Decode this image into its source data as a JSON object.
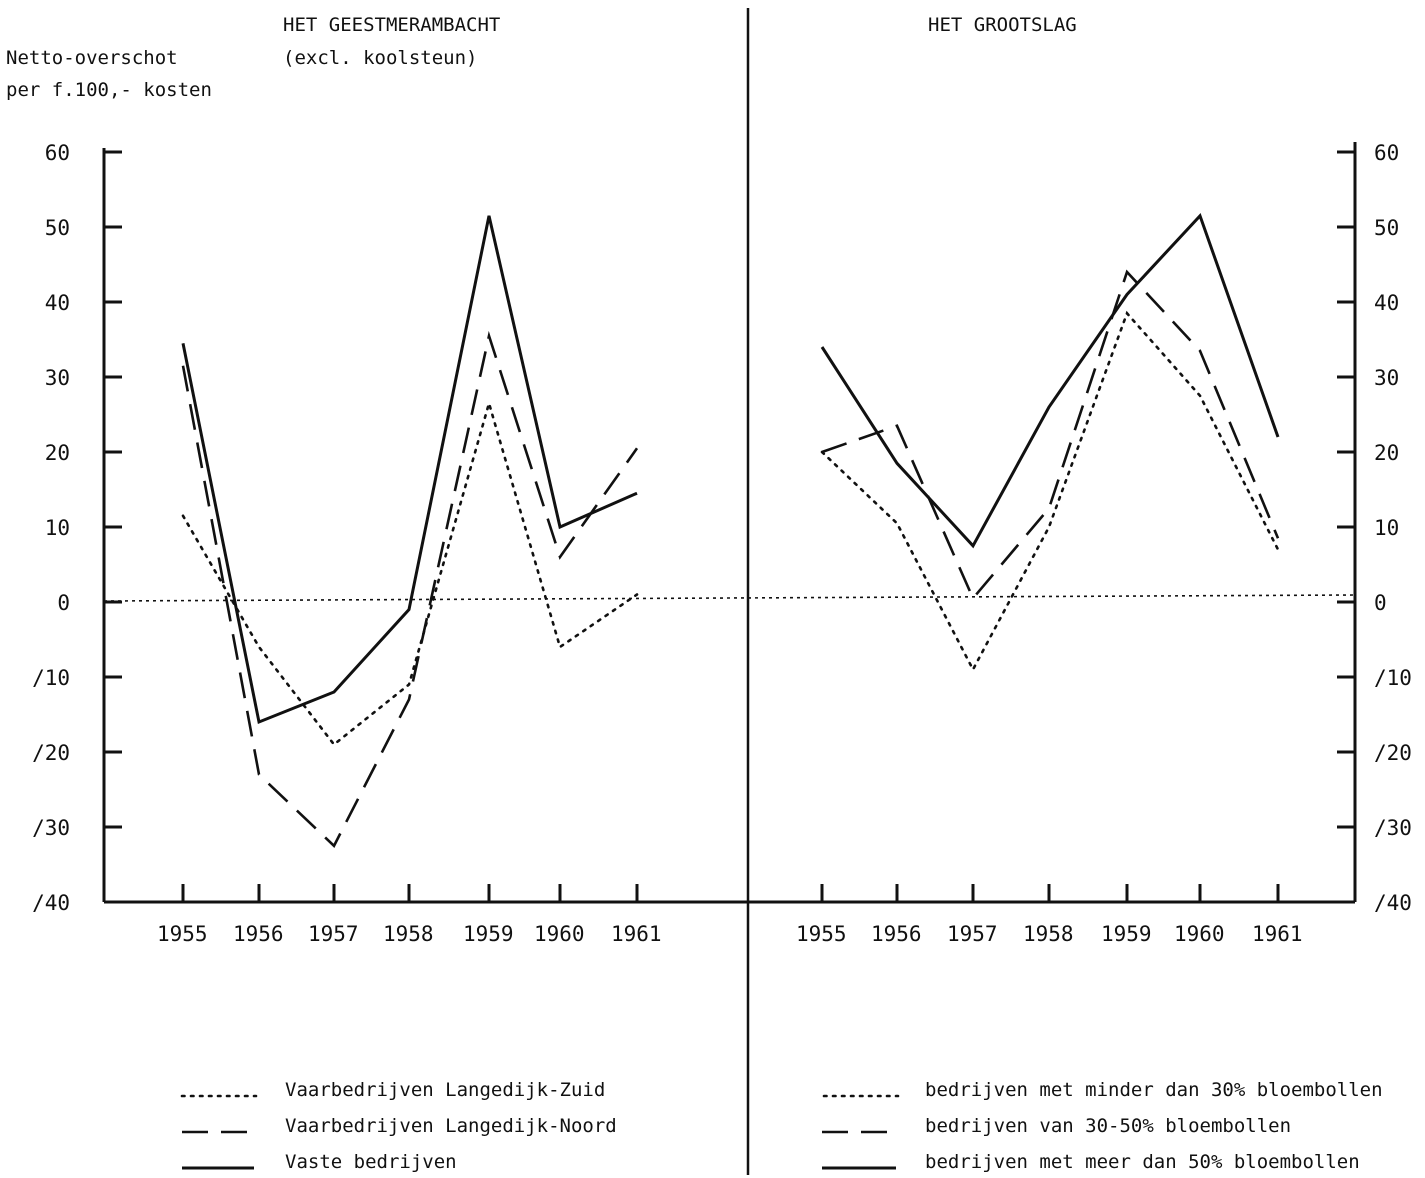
{
  "y_axis_title_line1": "Netto-overschot",
  "y_axis_title_line2": "per f.100,- kosten",
  "chart_data": [
    {
      "type": "line",
      "title": "HET GEESTMERAMBACHT",
      "subtitle": "(excl. koolsteun)",
      "ylabel": "Netto-overschot per f.100,- kosten",
      "ylim": [
        -40,
        60
      ],
      "yticks": [
        60,
        50,
        40,
        30,
        20,
        10,
        0,
        -10,
        -20,
        -30,
        -40
      ],
      "ytick_labels": [
        "60",
        "50",
        "40",
        "30",
        "20",
        "10",
        "0",
        "/10",
        "/20",
        "/30",
        "/40"
      ],
      "x": [
        "1955",
        "1956",
        "1957",
        "1958",
        "1959",
        "1960",
        "1961"
      ],
      "series": [
        {
          "name": "Vaarbedrijven Langedijk-Zuid",
          "style": "dotted",
          "values": [
            11.5,
            -6,
            -19,
            -11,
            26.5,
            -6,
            1
          ]
        },
        {
          "name": "Vaarbedrijven Langedijk-Noord",
          "style": "dashed",
          "values": [
            31.5,
            -23,
            -32.5,
            -13,
            35.5,
            6,
            20.5
          ]
        },
        {
          "name": "Vaste bedrijven",
          "style": "solid",
          "values": [
            34.5,
            -16,
            -12,
            -1,
            51.5,
            10,
            14.5
          ]
        }
      ]
    },
    {
      "type": "line",
      "title": "HET GROOTSLAG",
      "ylim": [
        -40,
        60
      ],
      "yticks": [
        60,
        50,
        40,
        30,
        20,
        10,
        0,
        -10,
        -20,
        -30,
        -40
      ],
      "ytick_labels": [
        "60",
        "50",
        "40",
        "30",
        "20",
        "10",
        "0",
        "/10",
        "/20",
        "/30",
        "/40"
      ],
      "x": [
        "1955",
        "1956",
        "1957",
        "1958",
        "1959",
        "1960",
        "1961"
      ],
      "series": [
        {
          "name": "bedrijven met minder dan 30% bloembollen",
          "style": "dotted",
          "values": [
            20,
            10.5,
            -9,
            10,
            38.5,
            27.5,
            7
          ]
        },
        {
          "name": "bedrijven van 30-50% bloembollen",
          "style": "dashed",
          "values": [
            20,
            23.5,
            0.5,
            12.5,
            44,
            33.5,
            8.5
          ]
        },
        {
          "name": "bedrijven met meer dan 50% bloembollen",
          "style": "solid",
          "values": [
            34,
            18.5,
            7.5,
            26,
            41,
            51.5,
            22
          ]
        }
      ]
    }
  ]
}
